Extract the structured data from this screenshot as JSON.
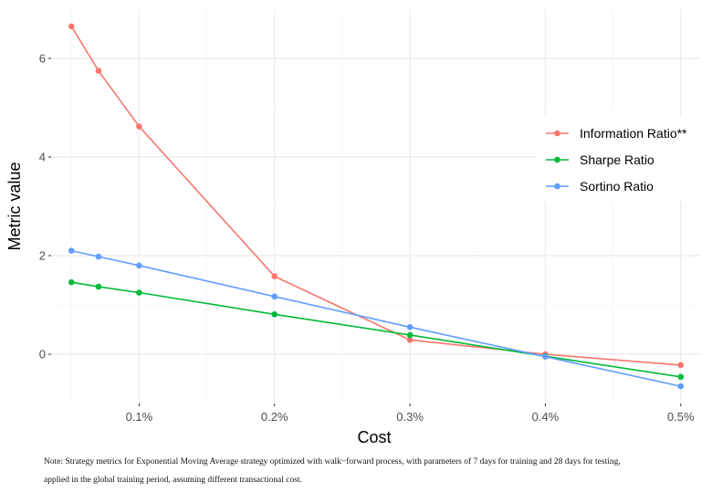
{
  "chart_data": {
    "type": "line",
    "title": "",
    "xlabel": "Cost",
    "ylabel": "Metric value",
    "x": [
      0.05,
      0.07,
      0.1,
      0.2,
      0.3,
      0.4,
      0.5
    ],
    "xlim": [
      0.035,
      0.515
    ],
    "ylim": [
      -1.0,
      7.0
    ],
    "x_ticks": [
      0.1,
      0.2,
      0.3,
      0.4,
      0.5
    ],
    "x_tick_labels": [
      "0.1%",
      "0.2%",
      "0.3%",
      "0.4%",
      "0.5%"
    ],
    "y_ticks": [
      0,
      2,
      4,
      6
    ],
    "y_tick_labels": [
      "0",
      "2",
      "4",
      "6"
    ],
    "grid": true,
    "legend_position": "right",
    "series": [
      {
        "name": "Information Ratio**",
        "color": "#F8766D",
        "values": [
          6.65,
          5.75,
          4.62,
          1.58,
          0.29,
          0.0,
          -0.22
        ]
      },
      {
        "name": "Sharpe Ratio",
        "color": "#00BA38",
        "values": [
          1.46,
          1.37,
          1.25,
          0.81,
          0.39,
          -0.04,
          -0.46
        ]
      },
      {
        "name": "Sortino Ratio",
        "color": "#619CFF",
        "values": [
          2.1,
          1.98,
          1.8,
          1.17,
          0.55,
          -0.05,
          -0.65
        ]
      }
    ]
  },
  "note": {
    "line1": "Note: Strategy metrics for Exponential Moving Average strategy optimized with walk−forward process, with parameters of 7 days for training and 28 days for testing,",
    "line2": "applied in the global training period, assuming different transactional cost."
  }
}
